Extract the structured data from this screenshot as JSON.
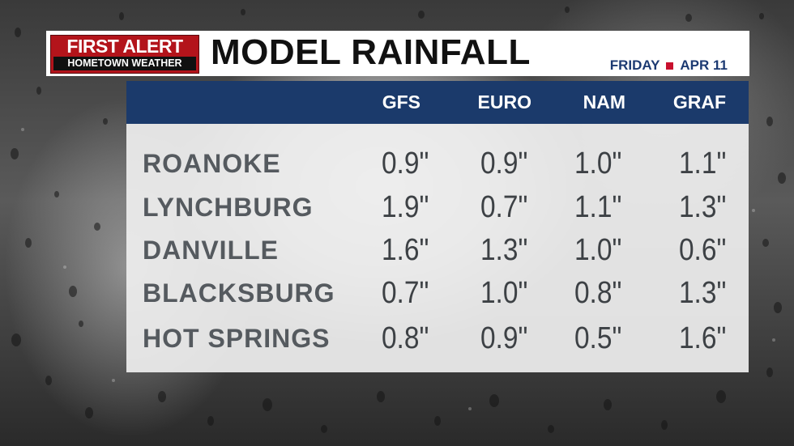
{
  "logo": {
    "top": "FIRST ALERT",
    "bottom": "HOMETOWN WEATHER",
    "color": "#b3141b"
  },
  "title": "MODEL RAINFALL",
  "date": {
    "day": "FRIDAY",
    "date": "APR 11"
  },
  "colors": {
    "header": "#1b3a6b",
    "accent": "#c8102e"
  },
  "table": {
    "columns": [
      "GFS",
      "EURO",
      "NAM",
      "GRAF"
    ],
    "rows": [
      {
        "city": "ROANOKE",
        "values": [
          "0.9\"",
          "0.9\"",
          "1.0\"",
          "1.1\""
        ]
      },
      {
        "city": "LYNCHBURG",
        "values": [
          "1.9\"",
          "0.7\"",
          "1.1\"",
          "1.3\""
        ]
      },
      {
        "city": "DANVILLE",
        "values": [
          "1.6\"",
          "1.3\"",
          "1.0\"",
          "0.6\""
        ]
      },
      {
        "city": "BLACKSBURG",
        "values": [
          "0.7\"",
          "1.0\"",
          "0.8\"",
          "1.3\""
        ]
      },
      {
        "city": "HOT SPRINGS",
        "values": [
          "0.8\"",
          "0.9\"",
          "0.5\"",
          "1.6\""
        ]
      }
    ]
  }
}
